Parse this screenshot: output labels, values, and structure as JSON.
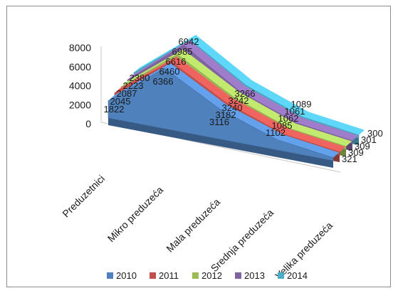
{
  "chart_data": {
    "type": "area",
    "title": "",
    "xlabel": "",
    "ylabel": "",
    "ylim": [
      0,
      8000
    ],
    "yticks": [
      "0",
      "2000",
      "4000",
      "6000",
      "8000"
    ],
    "categories": [
      "Preduzetnici",
      "Mikro preduzeća",
      "Mala preduzeća",
      "Srednja preduzeća",
      "Velika preduzeća"
    ],
    "legend_position": "bottom",
    "series": [
      {
        "name": "2010",
        "color": "#4f81bd",
        "values": [
          1822,
          6366,
          3116,
          1102,
          321
        ],
        "labels": [
          "1822",
          "6366",
          "3116",
          "1102",
          "321"
        ]
      },
      {
        "name": "2011",
        "color": "#c0504d",
        "values": [
          2045,
          6460,
          3182,
          1085,
          309
        ],
        "labels": [
          "2045",
          "6460",
          "3182",
          "1085",
          "309"
        ]
      },
      {
        "name": "2012",
        "color": "#9bbb59",
        "values": [
          2087,
          6616,
          3240,
          1062,
          309
        ],
        "labels": [
          "2087",
          "6616",
          "3240",
          "1062",
          "309"
        ]
      },
      {
        "name": "2013",
        "color": "#8064a2",
        "values": [
          2223,
          6985,
          3242,
          1061,
          301
        ],
        "labels": [
          "2223",
          "6985",
          "3242",
          "1061",
          "301"
        ]
      },
      {
        "name": "2014",
        "color": "#4bacc6",
        "values": [
          2380,
          6942,
          3266,
          1089,
          300
        ],
        "labels": [
          "2380",
          "6942",
          "3266",
          "1089",
          "300"
        ]
      }
    ]
  }
}
